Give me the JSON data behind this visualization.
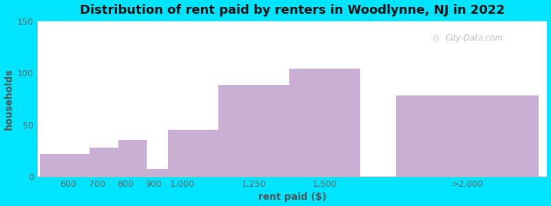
{
  "title": "Distribution of rent paid by renters in Woodlynne, NJ in 2022",
  "xlabel": "rent paid ($)",
  "ylabel": "households",
  "bar_color": "#c9afd4",
  "background_outer": "#00e5ff",
  "background_inner_left": "#dff0d8",
  "background_inner_right": "#f0eaf4",
  "ylim": [
    0,
    150
  ],
  "yticks": [
    0,
    50,
    100,
    150
  ],
  "title_fontsize": 13,
  "label_fontsize": 10,
  "tick_fontsize": 9,
  "watermark": "City-Data.com",
  "bar_left_edges": [
    500,
    675,
    775,
    875,
    950,
    1125,
    1375,
    1750
  ],
  "bar_right_edges": [
    675,
    775,
    875,
    950,
    1125,
    1375,
    1625,
    2250
  ],
  "values": [
    22,
    28,
    35,
    7,
    45,
    88,
    104,
    78
  ],
  "xtick_positions": [
    600,
    700,
    800,
    900,
    1000,
    1250,
    1500,
    2000
  ],
  "xtick_labels": [
    "600",
    "700",
    "800",
    "900",
    "1,000",
    "1,250",
    "1,500",
    ">2,000"
  ],
  "xlim": [
    490,
    2280
  ]
}
